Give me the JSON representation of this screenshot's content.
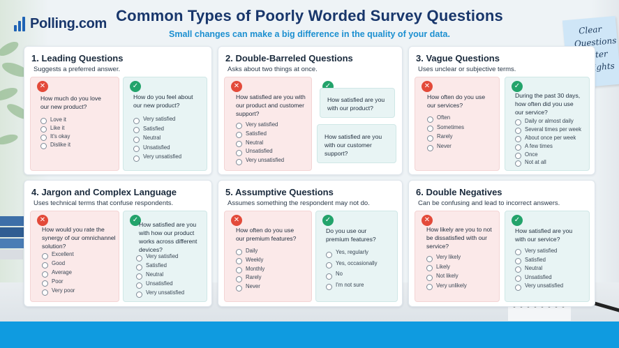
{
  "brand": {
    "name": "Polling.com"
  },
  "header": {
    "title": "Common Types of Poorly Worded Survey Questions",
    "subtitle": "Small changes can make a big difference in the quality of your data."
  },
  "sticky_note": {
    "lines": [
      "Clear",
      "Questions",
      "Better",
      "Insights"
    ]
  },
  "colors": {
    "bad": "#e34a3a",
    "good": "#23a36b",
    "accent": "#1b8fd0",
    "title": "#18366b",
    "bar": "#0f9be0"
  },
  "icons": {
    "bad": "x-icon",
    "good": "check-icon"
  },
  "panels": [
    {
      "title": "1. Leading Questions",
      "desc": "Suggests a preferred answer.",
      "bad": {
        "q": [
          "How much do you love",
          "our new product?"
        ],
        "opts": [
          "Love it",
          "Like it",
          "It's okay",
          "Dislike it"
        ]
      },
      "good": {
        "q": [
          "How do you feel about",
          "our new product?"
        ],
        "opts": [
          "Very satisfied",
          "Satisfied",
          "Neutral",
          "Unsatisfied",
          "Very unsatisfied"
        ]
      }
    },
    {
      "title": "2. Double-Barreled Questions",
      "desc": "Asks about two things at once.",
      "bad": {
        "q": [
          "How satisfied are you with",
          "our product and customer",
          "support?"
        ],
        "opts": [
          "Very satisfied",
          "Satisfied",
          "Neutral",
          "Unsatisfied",
          "Very unsatisfied"
        ]
      },
      "good": {
        "q": [
          "How satisfied are you",
          "with our product?"
        ]
      },
      "good2": {
        "q": [
          "How satisfied are you",
          "with our customer",
          "support?"
        ]
      }
    },
    {
      "title": "3. Vague Questions",
      "desc": "Uses unclear or subjective terms.",
      "bad": {
        "q": [
          "How often do you use",
          "our services?"
        ],
        "opts": [
          "Often",
          "Sometimes",
          "Rarely",
          "Never"
        ]
      },
      "good": {
        "q": [
          "During the past 30 days,",
          "how often did you use",
          "our service?"
        ],
        "opts": [
          "Daily or almost daily",
          "Several times per week",
          "About once per week",
          "A few times",
          "Once",
          "Not at all"
        ]
      }
    },
    {
      "title": "4. Jargon and Complex Language",
      "desc": "Uses technical terms that confuse respondents.",
      "bad": {
        "q": [
          "How would you rate the",
          "synergy of our omnichannel",
          "solution?"
        ],
        "opts": [
          "Excellent",
          "Good",
          "Average",
          "Poor",
          "Very poor"
        ]
      },
      "good": {
        "q": [
          "How satisfied are you",
          "with how our product",
          "works across different",
          "devices?"
        ],
        "opts": [
          "Very satisfied",
          "Satisfied",
          "Neutral",
          "Unsatisfied",
          "Very unsatisfied"
        ]
      }
    },
    {
      "title": "5. Assumptive Questions",
      "desc": "Assumes something the respondent may not do.",
      "bad": {
        "q": [
          "How often do you use",
          "our premium features?"
        ],
        "opts": [
          "Daily",
          "Weekly",
          "Monthly",
          "Rarely",
          "Never"
        ]
      },
      "good": {
        "q": [
          "Do you use our",
          "premium features?"
        ],
        "opts": [
          "Yes, regularly",
          "Yes, occasionally",
          "No",
          "I'm not sure"
        ]
      }
    },
    {
      "title": "6. Double Negatives",
      "desc": "Can be confusing and lead to incorrect answers.",
      "bad": {
        "q": [
          "How likely are you to not",
          "be dissatisfied with our",
          "service?"
        ],
        "opts": [
          "Very likely",
          "Likely",
          "Not likely",
          "Very unlikely"
        ]
      },
      "good": {
        "q": [
          "How satisfied are you",
          "with our service?"
        ],
        "opts": [
          "Very satisfied",
          "Satisfied",
          "Neutral",
          "Unsatisfied",
          "Very unsatisfied"
        ]
      }
    }
  ]
}
